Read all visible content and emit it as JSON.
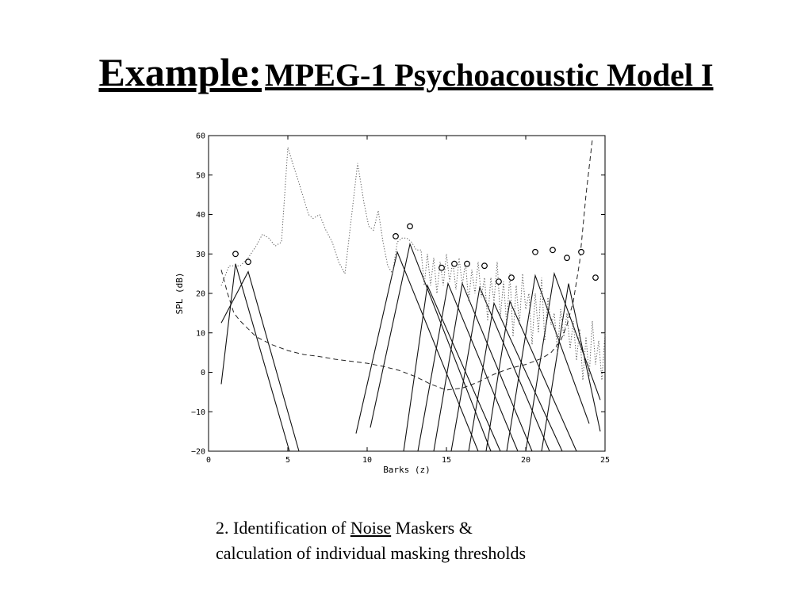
{
  "slide": {
    "title_lead": "Example:",
    "title_rest": "MPEG-1 Psychoacoustic Model I",
    "caption": {
      "line1_pre": "2. Identification of ",
      "line1_underlined": "Noise",
      "line1_post": " Maskers &",
      "line2": "calculation of individual masking thresholds"
    }
  },
  "chart_data": {
    "type": "line",
    "xlabel": "Barks (z)",
    "ylabel": "SPL (dB)",
    "xlim": [
      0,
      25
    ],
    "ylim": [
      -20,
      60
    ],
    "x_ticks": [
      "0",
      "5",
      "10",
      "15",
      "20",
      "25"
    ],
    "y_ticks": [
      "60",
      "50",
      "40",
      "30",
      "20",
      "10",
      "0",
      "−10",
      "−20"
    ],
    "grid": false,
    "series": [
      {
        "style": "dotted",
        "points": [
          [
            0.8,
            22
          ],
          [
            1.3,
            27
          ],
          [
            2.0,
            27
          ],
          [
            2.5,
            29
          ],
          [
            3.0,
            32
          ],
          [
            3.4,
            35
          ],
          [
            3.8,
            34
          ],
          [
            4.2,
            32
          ],
          [
            4.6,
            33
          ],
          [
            5.0,
            57
          ],
          [
            5.3,
            53
          ],
          [
            5.7,
            48
          ],
          [
            6.0,
            44
          ],
          [
            6.3,
            40
          ],
          [
            6.6,
            39
          ],
          [
            7.0,
            40
          ],
          [
            7.4,
            36
          ],
          [
            7.8,
            33
          ],
          [
            8.2,
            28
          ],
          [
            8.6,
            25
          ],
          [
            9.0,
            39
          ],
          [
            9.4,
            53
          ],
          [
            9.8,
            43
          ],
          [
            10.1,
            37
          ],
          [
            10.4,
            36
          ],
          [
            10.7,
            41
          ],
          [
            11.0,
            33
          ],
          [
            11.3,
            27
          ],
          [
            11.6,
            25
          ],
          [
            11.9,
            33
          ],
          [
            12.2,
            34
          ],
          [
            12.5,
            34
          ],
          [
            12.8,
            33
          ],
          [
            13.1,
            31
          ],
          [
            13.4,
            31
          ],
          [
            13.6,
            22
          ],
          [
            13.8,
            30
          ],
          [
            14.0,
            22
          ],
          [
            14.2,
            29
          ],
          [
            14.4,
            20
          ],
          [
            14.6,
            28
          ],
          [
            14.8,
            22
          ],
          [
            15.0,
            30
          ],
          [
            15.2,
            23
          ],
          [
            15.4,
            28
          ],
          [
            15.6,
            21
          ],
          [
            15.8,
            29
          ],
          [
            16.0,
            22
          ],
          [
            16.2,
            28
          ],
          [
            16.4,
            18
          ],
          [
            16.6,
            26
          ],
          [
            16.8,
            20
          ],
          [
            17.0,
            28
          ],
          [
            17.2,
            19
          ],
          [
            17.4,
            24
          ],
          [
            17.6,
            13
          ],
          [
            17.8,
            24
          ],
          [
            18.0,
            18
          ],
          [
            18.2,
            28
          ],
          [
            18.4,
            14
          ],
          [
            18.6,
            23
          ],
          [
            18.8,
            12
          ],
          [
            19.0,
            25
          ],
          [
            19.2,
            9
          ],
          [
            19.4,
            22
          ],
          [
            19.6,
            12
          ],
          [
            19.8,
            25
          ],
          [
            20.0,
            16
          ],
          [
            20.2,
            20
          ],
          [
            20.4,
            7
          ],
          [
            20.6,
            20
          ],
          [
            20.8,
            10
          ],
          [
            21.0,
            24
          ],
          [
            21.2,
            8
          ],
          [
            21.4,
            19
          ],
          [
            21.6,
            12
          ],
          [
            21.8,
            15
          ],
          [
            22.0,
            5
          ],
          [
            22.2,
            16
          ],
          [
            22.4,
            9
          ],
          [
            22.6,
            15
          ],
          [
            22.8,
            6
          ],
          [
            23.0,
            13
          ],
          [
            23.2,
            3
          ],
          [
            23.4,
            11
          ],
          [
            23.6,
            -2
          ],
          [
            23.8,
            9
          ],
          [
            24.0,
            -1
          ],
          [
            24.2,
            13
          ],
          [
            24.4,
            2
          ],
          [
            24.6,
            8
          ],
          [
            24.8,
            -2
          ],
          [
            25.0,
            10
          ]
        ]
      },
      {
        "style": "dashed",
        "points": [
          [
            0.8,
            26
          ],
          [
            1.2,
            20
          ],
          [
            1.6,
            15
          ],
          [
            2.0,
            13
          ],
          [
            2.5,
            11
          ],
          [
            3.0,
            9
          ],
          [
            4.0,
            7
          ],
          [
            5.0,
            5.5
          ],
          [
            6.0,
            4.5
          ],
          [
            7.0,
            4
          ],
          [
            8.0,
            3.3
          ],
          [
            9.0,
            2.8
          ],
          [
            10.0,
            2.3
          ],
          [
            11.0,
            1.5
          ],
          [
            12.0,
            0.5
          ],
          [
            13.0,
            -1
          ],
          [
            14.0,
            -3
          ],
          [
            15.0,
            -4.5
          ],
          [
            16.0,
            -4
          ],
          [
            17.0,
            -2.5
          ],
          [
            18.0,
            -0.5
          ],
          [
            19.0,
            1
          ],
          [
            20.0,
            2
          ],
          [
            21.0,
            3.5
          ],
          [
            21.6,
            5
          ],
          [
            22.2,
            8
          ],
          [
            22.6,
            12
          ],
          [
            23.0,
            18
          ],
          [
            23.4,
            28
          ],
          [
            23.8,
            45
          ],
          [
            24.2,
            59
          ]
        ]
      }
    ],
    "masking_thresholds": [
      {
        "peak": [
          1.7,
          27.5
        ],
        "ends": [
          [
            0.8,
            -3
          ],
          [
            5.1,
            -20
          ]
        ]
      },
      {
        "peak": [
          2.5,
          25.5
        ],
        "ends": [
          [
            0.8,
            12.5
          ],
          [
            5.7,
            -20
          ]
        ]
      },
      {
        "peak": [
          11.9,
          30.5
        ],
        "ends": [
          [
            9.3,
            -15.5
          ],
          [
            17.0,
            -20
          ]
        ]
      },
      {
        "peak": [
          12.7,
          32.5
        ],
        "ends": [
          [
            10.2,
            -14
          ],
          [
            17.8,
            -20
          ]
        ]
      },
      {
        "peak": [
          13.8,
          22
        ],
        "ends": [
          [
            12.3,
            -20
          ],
          [
            18.4,
            -20
          ]
        ]
      },
      {
        "peak": [
          15.1,
          22.5
        ],
        "ends": [
          [
            13.2,
            -20
          ],
          [
            19.5,
            -20
          ]
        ]
      },
      {
        "peak": [
          16.0,
          22.5
        ],
        "ends": [
          [
            14.2,
            -20
          ],
          [
            20.4,
            -20
          ]
        ]
      },
      {
        "peak": [
          17.1,
          21.5
        ],
        "ends": [
          [
            15.3,
            -20
          ],
          [
            21.5,
            -20
          ]
        ]
      },
      {
        "peak": [
          18.0,
          17.5
        ],
        "ends": [
          [
            16.4,
            -20
          ],
          [
            22.3,
            -20
          ]
        ]
      },
      {
        "peak": [
          19.0,
          18.0
        ],
        "ends": [
          [
            17.5,
            -20
          ],
          [
            23.2,
            -20
          ]
        ]
      },
      {
        "peak": [
          20.6,
          24.5
        ],
        "ends": [
          [
            18.8,
            -20
          ],
          [
            24.0,
            -13
          ]
        ]
      },
      {
        "peak": [
          21.8,
          25.0
        ],
        "ends": [
          [
            20.0,
            -20
          ],
          [
            24.7,
            -7
          ]
        ]
      },
      {
        "peak": [
          22.7,
          22.5
        ],
        "ends": [
          [
            21.0,
            -20
          ],
          [
            24.7,
            -15
          ]
        ]
      }
    ],
    "maskers": [
      [
        1.7,
        30
      ],
      [
        2.5,
        28
      ],
      [
        11.8,
        34.5
      ],
      [
        12.7,
        37
      ],
      [
        14.7,
        26.5
      ],
      [
        15.5,
        27.5
      ],
      [
        16.3,
        27.5
      ],
      [
        17.4,
        27
      ],
      [
        18.3,
        23
      ],
      [
        19.1,
        24
      ],
      [
        20.6,
        30.5
      ],
      [
        21.7,
        31
      ],
      [
        22.6,
        29
      ],
      [
        23.5,
        30.5
      ],
      [
        24.4,
        24
      ]
    ]
  }
}
